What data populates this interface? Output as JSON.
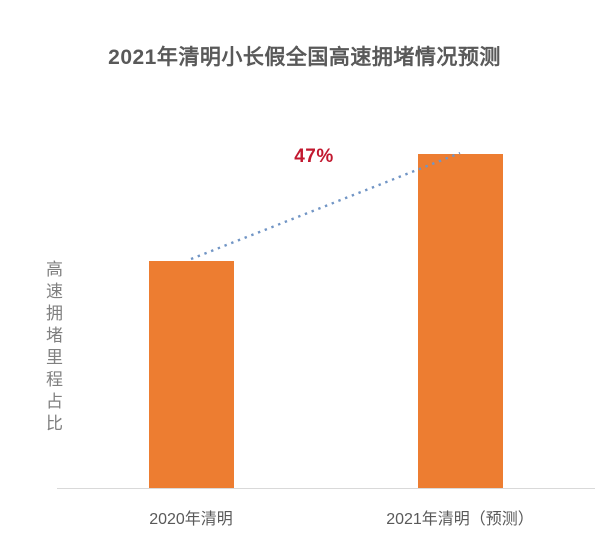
{
  "title": {
    "text": "2021年清明小长假全国高速拥堵情况预测",
    "color": "#595959"
  },
  "y_axis": {
    "label": "高速拥堵里程占比",
    "color": "#808080"
  },
  "x_axis": {
    "labels": [
      "2020年清明",
      "2021年清明（预测）"
    ],
    "color": "#595959",
    "line_color": "#d9d9d9"
  },
  "annotation": {
    "text": "47%",
    "color": "#c2182f"
  },
  "trend_line": {
    "color": "#7195c5",
    "style": "dotted"
  },
  "chart_data": {
    "type": "bar",
    "title": "2021年清明小长假全国高速拥堵情况预测",
    "ylabel": "高速拥堵里程占比",
    "xlabel": "",
    "categories": [
      "2020年清明",
      "2021年清明（预测）"
    ],
    "values": [
      100,
      147
    ],
    "values_note": "relative index values; no numeric axis ticks are shown — 2021 bar is 47% taller than the 2020 bar",
    "bar_color": "#ed7d31",
    "grid": false,
    "legend": false,
    "annotations": [
      {
        "text": "47%",
        "type": "growth-connector-dotted-line",
        "from_category": "2020年清明",
        "to_category": "2021年清明（预测）",
        "text_color": "#c2182f",
        "line_color": "#7195c5"
      }
    ]
  }
}
